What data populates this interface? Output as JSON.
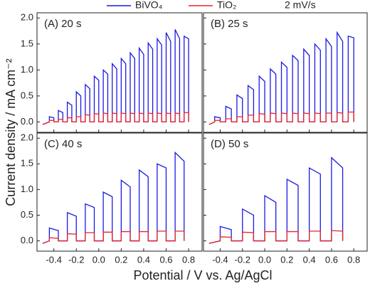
{
  "chart_data": [
    {
      "type": "line",
      "title": "(A)  20 s",
      "annotation": "2 mV/s",
      "xlabel": "Potential / V vs. Ag/AgCl",
      "ylabel": "Current density / mA cm⁻²",
      "xlim": [
        -0.55,
        0.92
      ],
      "ylim": [
        -0.2,
        2.1
      ],
      "xticks": [
        -0.4,
        -0.2,
        0,
        0.2,
        0.4,
        0.6,
        0.8
      ],
      "yticks": [
        {
          "value": 0,
          "label": "0.0"
        },
        0.5,
        {
          "value": 1,
          "label": "1.0"
        },
        1.5,
        {
          "value": 2,
          "label": "2.0"
        }
      ],
      "x": [
        -0.5,
        -0.44,
        -0.44,
        -0.4,
        -0.4,
        -0.36,
        -0.36,
        -0.32,
        -0.32,
        -0.28,
        -0.28,
        -0.24,
        -0.24,
        -0.2,
        -0.2,
        -0.16,
        -0.16,
        -0.12,
        -0.12,
        -0.08,
        -0.08,
        -0.04,
        -0.04,
        0,
        0,
        0.04,
        0.04,
        0.08,
        0.08,
        0.12,
        0.12,
        0.16,
        0.16,
        0.2,
        0.2,
        0.24,
        0.24,
        0.28,
        0.28,
        0.32,
        0.32,
        0.36,
        0.36,
        0.4,
        0.4,
        0.44,
        0.44,
        0.48,
        0.48,
        0.52,
        0.52,
        0.56,
        0.56,
        0.6,
        0.6,
        0.64,
        0.64,
        0.68,
        0.68,
        0.72,
        0.72,
        0.76,
        0.76,
        0.8,
        0.8
      ],
      "series": [
        {
          "name": "BiVO₄",
          "color": "#1a1ae6",
          "values": [
            -0.05,
            0,
            0.1,
            0.08,
            0,
            0,
            0.22,
            0.18,
            0,
            0,
            0.38,
            0.32,
            0,
            0,
            0.58,
            0.5,
            0,
            0,
            0.72,
            0.64,
            0,
            0,
            0.88,
            0.8,
            0,
            0,
            1.0,
            0.92,
            0,
            0,
            1.12,
            1.02,
            0,
            0,
            1.22,
            1.12,
            0,
            0,
            1.33,
            1.22,
            0,
            0,
            1.42,
            1.3,
            0,
            0,
            1.52,
            1.4,
            0,
            0,
            1.6,
            1.48,
            0,
            0,
            1.72,
            1.55,
            0,
            0,
            1.78,
            1.6,
            0,
            0,
            1.65,
            1.6,
            0
          ]
        },
        {
          "name": "TiO₂",
          "color": "#e8232a",
          "values": [
            -0.05,
            0,
            0.03,
            0.03,
            0,
            0,
            0.05,
            0.05,
            0,
            0,
            0.08,
            0.08,
            0,
            0,
            0.1,
            0.1,
            0,
            0,
            0.14,
            0.13,
            0,
            0,
            0.16,
            0.15,
            0,
            0,
            0.17,
            0.16,
            0,
            0,
            0.17,
            0.16,
            0,
            0,
            0.17,
            0.16,
            0,
            0,
            0.17,
            0.16,
            0,
            0,
            0.17,
            0.16,
            0,
            0,
            0.17,
            0.16,
            0,
            0,
            0.17,
            0.16,
            0,
            0,
            0.17,
            0.16,
            0,
            0,
            0.17,
            0.16,
            0,
            0,
            0.18,
            0.18,
            0
          ]
        }
      ]
    },
    {
      "type": "line",
      "title": "(B)  25 s",
      "xlim": [
        -0.55,
        0.92
      ],
      "ylim": [
        -0.2,
        2.1
      ],
      "xticks": [
        -0.4,
        -0.2,
        0,
        0.2,
        0.4,
        0.6,
        0.8
      ],
      "yticks": [
        0,
        0.5,
        1,
        1.5,
        2
      ],
      "x": [
        -0.5,
        -0.45,
        -0.45,
        -0.4,
        -0.4,
        -0.35,
        -0.35,
        -0.3,
        -0.3,
        -0.25,
        -0.25,
        -0.2,
        -0.2,
        -0.15,
        -0.15,
        -0.1,
        -0.1,
        -0.05,
        -0.05,
        0,
        0,
        0.05,
        0.05,
        0.1,
        0.1,
        0.15,
        0.15,
        0.2,
        0.2,
        0.25,
        0.25,
        0.3,
        0.3,
        0.35,
        0.35,
        0.4,
        0.4,
        0.45,
        0.45,
        0.5,
        0.5,
        0.55,
        0.55,
        0.6,
        0.6,
        0.65,
        0.65,
        0.7,
        0.7,
        0.75,
        0.75,
        0.8,
        0.8
      ],
      "series": [
        {
          "color": "#1a1ae6",
          "values": [
            -0.05,
            0,
            0.1,
            0.08,
            0,
            0,
            0.3,
            0.25,
            0,
            0,
            0.52,
            0.45,
            0,
            0,
            0.7,
            0.62,
            0,
            0,
            0.88,
            0.78,
            0,
            0,
            1.02,
            0.92,
            0,
            0,
            1.15,
            1.05,
            0,
            0,
            1.28,
            1.18,
            0,
            0,
            1.4,
            1.28,
            0,
            0,
            1.5,
            1.38,
            0,
            0,
            1.6,
            1.45,
            0,
            0,
            1.72,
            1.55,
            0,
            0,
            1.65,
            1.62,
            0
          ]
        },
        {
          "color": "#e8232a",
          "values": [
            -0.05,
            0,
            0.03,
            0.03,
            0,
            0,
            0.06,
            0.06,
            0,
            0,
            0.1,
            0.1,
            0,
            0,
            0.13,
            0.13,
            0,
            0,
            0.16,
            0.15,
            0,
            0,
            0.17,
            0.16,
            0,
            0,
            0.17,
            0.16,
            0,
            0,
            0.17,
            0.16,
            0,
            0,
            0.17,
            0.16,
            0,
            0,
            0.17,
            0.16,
            0,
            0,
            0.17,
            0.17,
            0,
            0,
            0.18,
            0.17,
            0,
            0,
            0.19,
            0.19,
            0
          ]
        }
      ]
    },
    {
      "type": "line",
      "title": "(C)  40 s",
      "xlim": [
        -0.55,
        0.92
      ],
      "ylim": [
        -0.2,
        2.1
      ],
      "xticks": [
        {
          "value": -0.4,
          "label": "-0.4"
        },
        {
          "value": -0.2,
          "label": "-0.2"
        },
        {
          "value": 0,
          "label": "0.0"
        },
        0.2,
        0.4,
        0.6,
        0.8
      ],
      "yticks": [
        {
          "value": 0,
          "label": "0.0"
        },
        0.5,
        {
          "value": 1,
          "label": "1.0"
        },
        1.5,
        {
          "value": 2,
          "label": "2.0"
        }
      ],
      "x": [
        -0.5,
        -0.44,
        -0.44,
        -0.36,
        -0.36,
        -0.28,
        -0.28,
        -0.2,
        -0.2,
        -0.12,
        -0.12,
        -0.04,
        -0.04,
        0.04,
        0.04,
        0.12,
        0.12,
        0.2,
        0.2,
        0.28,
        0.28,
        0.36,
        0.36,
        0.44,
        0.44,
        0.52,
        0.52,
        0.6,
        0.6,
        0.68,
        0.68,
        0.76,
        0.76
      ],
      "series": [
        {
          "color": "#1a1ae6",
          "values": [
            -0.05,
            0,
            0.25,
            0.2,
            0,
            0,
            0.55,
            0.48,
            0,
            0,
            0.72,
            0.65,
            0,
            0,
            0.95,
            0.86,
            0,
            0,
            1.18,
            1.05,
            0,
            0,
            1.38,
            1.25,
            0,
            0,
            1.5,
            1.42,
            0,
            0,
            1.72,
            1.55,
            0
          ]
        },
        {
          "color": "#e8232a",
          "values": [
            -0.05,
            0,
            0.06,
            0.05,
            0,
            0,
            0.14,
            0.13,
            0,
            0,
            0.16,
            0.16,
            0,
            0,
            0.17,
            0.17,
            0,
            0,
            0.18,
            0.18,
            0,
            0,
            0.18,
            0.18,
            0,
            0,
            0.19,
            0.19,
            0,
            0,
            0.19,
            0.19,
            0
          ]
        }
      ]
    },
    {
      "type": "line",
      "title": "(D)  50 s",
      "xlim": [
        -0.55,
        0.92
      ],
      "ylim": [
        -0.2,
        2.1
      ],
      "xticks": [
        {
          "value": -0.4,
          "label": "-0.4"
        },
        {
          "value": -0.2,
          "label": "-0.2"
        },
        {
          "value": 0,
          "label": "0.0"
        },
        0.2,
        0.4,
        0.6,
        0.8
      ],
      "yticks": [
        0,
        0.5,
        1,
        1.5,
        2
      ],
      "x": [
        -0.5,
        -0.4,
        -0.4,
        -0.3,
        -0.3,
        -0.2,
        -0.2,
        -0.1,
        -0.1,
        0,
        0,
        0.1,
        0.1,
        0.2,
        0.2,
        0.3,
        0.3,
        0.4,
        0.4,
        0.5,
        0.5,
        0.6,
        0.6,
        0.7,
        0.7
      ],
      "series": [
        {
          "color": "#1a1ae6",
          "values": [
            -0.05,
            0,
            0.28,
            0.22,
            0,
            0,
            0.62,
            0.5,
            0,
            0,
            0.88,
            0.75,
            0,
            0,
            1.2,
            1.08,
            0,
            0,
            1.42,
            1.3,
            0,
            0,
            1.62,
            1.42,
            0
          ]
        },
        {
          "color": "#e8232a",
          "values": [
            -0.05,
            0,
            0.08,
            0.07,
            0,
            0,
            0.17,
            0.16,
            0,
            0,
            0.18,
            0.18,
            0,
            0,
            0.18,
            0.18,
            0,
            0,
            0.19,
            0.19,
            0,
            0,
            0.2,
            0.19,
            0
          ]
        }
      ]
    }
  ]
}
